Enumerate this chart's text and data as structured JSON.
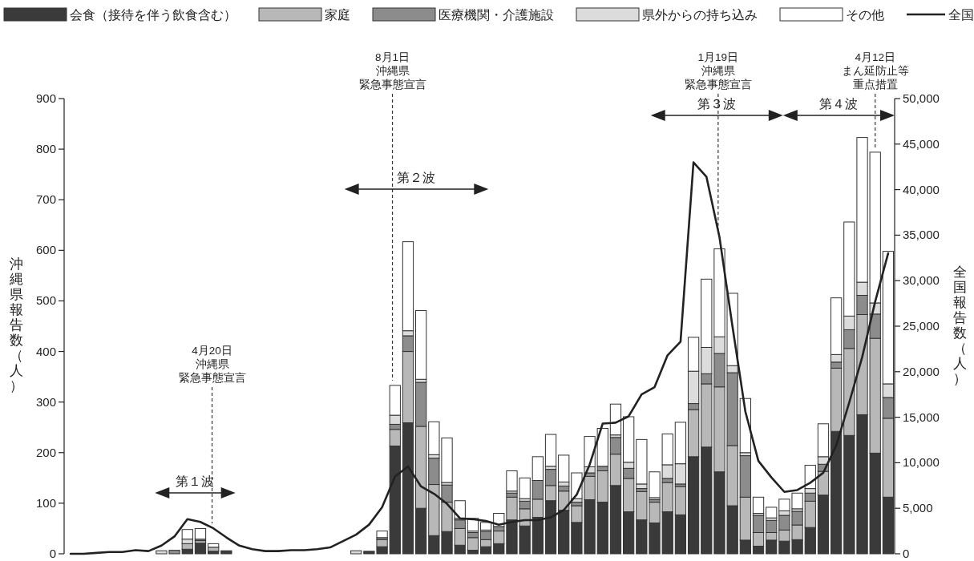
{
  "chart_data": {
    "type": "bar",
    "stacked": true,
    "legend": "top",
    "ylabel": "沖縄県報告数（人）",
    "y2label": "全国報告数（人）",
    "categories": [
      null,
      null,
      null,
      null,
      null,
      null,
      null,
      null,
      null,
      null,
      null,
      null,
      null,
      null,
      null,
      null,
      null,
      null,
      null,
      null,
      null,
      null,
      null,
      null,
      null,
      null,
      null,
      null,
      null,
      null,
      null,
      null,
      null,
      null,
      null,
      null,
      null,
      null,
      null,
      null,
      null,
      null,
      null,
      null,
      null,
      null,
      null,
      null,
      null,
      null,
      null,
      null,
      null,
      null,
      null,
      null,
      null,
      null,
      null,
      null,
      null,
      null,
      null,
      null
    ],
    "ylim": [
      0,
      900
    ],
    "yticks": [
      0,
      100,
      200,
      300,
      400,
      500,
      600,
      700,
      800,
      900
    ],
    "y2lim": [
      0,
      50000
    ],
    "y2ticks": [
      0,
      {
        "value": 5000,
        "label": "5,000"
      },
      {
        "value": 10000,
        "label": "10,000"
      },
      {
        "value": 15000,
        "label": "15,000"
      },
      {
        "value": 20000,
        "label": "20,000"
      },
      {
        "value": 25000,
        "label": "25,000"
      },
      {
        "value": 30000,
        "label": "30,000"
      },
      {
        "value": 35000,
        "label": "35,000"
      },
      {
        "value": 40000,
        "label": "40,000"
      },
      {
        "value": 45000,
        "label": "45,000"
      },
      {
        "value": 50000,
        "label": "50,000"
      }
    ],
    "series": [
      {
        "name": "会食（接待を伴う飲食含む）",
        "color": "#3a3a3a",
        "values": [
          null,
          null,
          null,
          null,
          null,
          null,
          null,
          null,
          null,
          9,
          21,
          5,
          6,
          null,
          null,
          null,
          null,
          null,
          null,
          null,
          null,
          null,
          null,
          5,
          14,
          213,
          259,
          90,
          36,
          44,
          17,
          7,
          14,
          20,
          67,
          55,
          72,
          105,
          86,
          62,
          107,
          102,
          135,
          83,
          67,
          61,
          83,
          77,
          192,
          211,
          162,
          95,
          27,
          15,
          27,
          25,
          28,
          52,
          116,
          242,
          234,
          275,
          199,
          112
        ]
      },
      {
        "name": "家庭",
        "color": "#b8b8b8",
        "values": [
          null,
          null,
          null,
          null,
          null,
          null,
          null,
          null,
          null,
          11,
          5,
          8,
          null,
          null,
          null,
          null,
          null,
          null,
          null,
          null,
          null,
          null,
          null,
          null,
          14,
          33,
          141,
          162,
          101,
          58,
          33,
          25,
          14,
          25,
          45,
          34,
          36,
          30,
          38,
          33,
          46,
          62,
          62,
          66,
          56,
          41,
          58,
          56,
          93,
          125,
          168,
          119,
          85,
          27,
          15,
          22,
          29,
          52,
          47,
          125,
          172,
          198,
          227,
          156
        ]
      },
      {
        "name": "医療機関・介護施設",
        "color": "#8c8c8c",
        "values": [
          null,
          null,
          null,
          null,
          null,
          null,
          null,
          null,
          7,
          null,
          3,
          null,
          null,
          null,
          null,
          null,
          null,
          null,
          null,
          null,
          null,
          null,
          null,
          null,
          4,
          10,
          31,
          87,
          52,
          34,
          17,
          10,
          16,
          9,
          8,
          15,
          37,
          32,
          10,
          7,
          7,
          9,
          33,
          20,
          6,
          5,
          8,
          5,
          12,
          20,
          66,
          144,
          82,
          34,
          24,
          29,
          27,
          16,
          14,
          12,
          37,
          38,
          48,
          41
        ]
      },
      {
        "name": "県外からの持ち込み",
        "color": "#dcdcdc",
        "values": [
          null,
          null,
          null,
          null,
          null,
          null,
          null,
          6,
          null,
          9,
          null,
          null,
          null,
          null,
          null,
          null,
          null,
          null,
          null,
          null,
          null,
          null,
          6,
          null,
          null,
          18,
          10,
          6,
          7,
          5,
          3,
          3,
          3,
          null,
          4,
          5,
          null,
          6,
          8,
          7,
          12,
          null,
          5,
          12,
          9,
          4,
          27,
          40,
          64,
          52,
          33,
          14,
          6,
          4,
          5,
          9,
          5,
          9,
          15,
          15,
          27,
          26,
          22,
          27
        ]
      },
      {
        "name": "その他",
        "color": "#ffffff",
        "values": [
          null,
          null,
          null,
          null,
          null,
          null,
          null,
          null,
          null,
          19,
          21,
          7,
          null,
          null,
          null,
          null,
          null,
          null,
          null,
          null,
          null,
          null,
          null,
          null,
          13,
          59,
          176,
          136,
          65,
          88,
          35,
          25,
          15,
          26,
          40,
          41,
          47,
          63,
          53,
          51,
          60,
          75,
          61,
          90,
          88,
          51,
          61,
          82,
          67,
          135,
          174,
          143,
          107,
          32,
          21,
          23,
          31,
          46,
          65,
          112,
          186,
          286,
          298,
          262
        ]
      },
      {
        "name": "全国",
        "type": "line",
        "axis": "y2",
        "color": "#222222",
        "values": [
          0,
          0,
          100,
          200,
          200,
          400,
          300,
          900,
          1900,
          3800,
          3500,
          2800,
          1800,
          900,
          500,
          300,
          300,
          400,
          400,
          500,
          700,
          1400,
          2100,
          3200,
          5100,
          8500,
          9600,
          7400,
          6600,
          5500,
          3900,
          3800,
          3600,
          3200,
          3500,
          3700,
          3700,
          4000,
          4800,
          6500,
          9800,
          14300,
          14400,
          15100,
          17500,
          18300,
          21800,
          23300,
          43000,
          41400,
          34800,
          25000,
          15600,
          10200,
          8400,
          6800,
          7000,
          7800,
          8900,
          11900,
          16600,
          21600,
          27700,
          33000
        ]
      }
    ],
    "annotations": [
      "4月20日",
      "沖縄県",
      "緊急事態宣言",
      "8月1日",
      "沖縄県",
      "緊急事態宣言",
      "1月19日",
      "沖縄県",
      "緊急事態宣言",
      "4月12日",
      "まん延防止等",
      "重点措置",
      "第１波",
      "第２波",
      "第３波",
      "第４波"
    ]
  }
}
